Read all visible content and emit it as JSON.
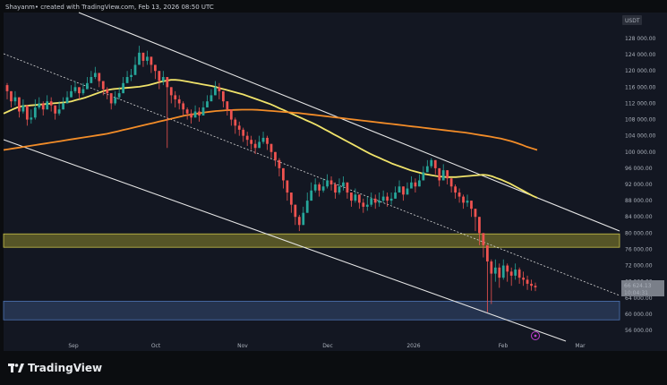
{
  "header": {
    "caption": "Shayanm• created with TradingView.com, Feb 13, 2026 08:50 UTC",
    "currency": "USDT"
  },
  "footer": {
    "brand": "TradingView"
  },
  "price_tags": {
    "current": "66 624.13",
    "countdown": "10:04:31"
  },
  "colors": {
    "background": "#131722",
    "bull": "#26a69a",
    "bear": "#ef5350",
    "ma_fast": "#f0e36a",
    "ma_slow": "#f28c28",
    "channel": "#e6e6e6",
    "resistance_zone": "#6e6b2a",
    "support_zone": "#2c3e5e"
  },
  "chart_data": {
    "type": "candlestick",
    "title": "",
    "xlabel": "",
    "ylabel": "",
    "ylim": [
      52000,
      130000
    ],
    "y_ticks": [
      "128 000.00",
      "124 000.00",
      "120 000.00",
      "116 000.00",
      "112 000.00",
      "108 000.00",
      "104 000.00",
      "100 000.00",
      "96 000.00",
      "92 000.00",
      "88 000.00",
      "84 000.00",
      "80 000.00",
      "76 000.00",
      "72 000.00",
      "68 000.00",
      "64 000.00",
      "60 000.00",
      "56 000.00"
    ],
    "x_ticks": [
      "Sep",
      "Oct",
      "Nov",
      "Dec",
      "2026",
      "Feb",
      "Mar"
    ],
    "series": [
      {
        "name": "",
        "kind": "candles",
        "color_up": "#26a69a",
        "color_down": "#ef5350",
        "close": [
          115000,
          112500,
          113500,
          110000,
          111500,
          108000,
          108500,
          111000,
          112000,
          110500,
          112500,
          111500,
          109500,
          110500,
          112000,
          113500,
          115000,
          116000,
          114500,
          115500,
          117000,
          118500,
          119500,
          117500,
          115500,
          114500,
          112000,
          113500,
          114500,
          117000,
          118500,
          119000,
          121500,
          124500,
          122500,
          123500,
          121500,
          120000,
          117500,
          118500,
          116000,
          114000,
          113000,
          112000,
          110500,
          109500,
          108500,
          110000,
          109000,
          111000,
          112500,
          114000,
          116000,
          115000,
          112500,
          110500,
          108000,
          106500,
          105500,
          104000,
          103000,
          102000,
          101000,
          102500,
          103500,
          102000,
          100000,
          98000,
          96000,
          93000,
          90000,
          87000,
          84000,
          82000,
          85000,
          88000,
          90500,
          92000,
          90500,
          91500,
          93000,
          92000,
          90000,
          91500,
          92500,
          90000,
          88000,
          89500,
          87500,
          86500,
          87000,
          88500,
          87500,
          88000,
          89000,
          88000,
          88500,
          90000,
          91500,
          89500,
          91000,
          92500,
          91500,
          93000,
          95000,
          96500,
          98000,
          96000,
          93000,
          95500,
          93500,
          91500,
          90000,
          89000,
          87500,
          88000,
          86000,
          84000,
          80000,
          77000,
          73000,
          70000,
          71500,
          69000,
          72000,
          70500,
          69500,
          71000,
          69000,
          68500,
          67500,
          67000,
          66624
        ],
        "high": [
          117000,
          115000,
          115000,
          113500,
          113000,
          111500,
          110500,
          113000,
          113500,
          112500,
          114000,
          113500,
          111500,
          112500,
          113500,
          115000,
          116500,
          117500,
          116000,
          117000,
          118500,
          120000,
          121000,
          119500,
          117500,
          116000,
          114000,
          115000,
          116000,
          118500,
          120000,
          120500,
          123500,
          126200,
          124500,
          125000,
          123500,
          121500,
          119500,
          120000,
          118000,
          116000,
          115000,
          114000,
          112500,
          111000,
          110500,
          111500,
          111000,
          112500,
          114000,
          115500,
          117500,
          117000,
          115000,
          112500,
          110000,
          108500,
          107500,
          106000,
          105000,
          104000,
          103000,
          104000,
          105000,
          104000,
          102000,
          100000,
          98500,
          95000,
          92500,
          89000,
          86500,
          84500,
          86500,
          90000,
          92500,
          93500,
          92500,
          93500,
          94500,
          94000,
          92500,
          93500,
          94000,
          92500,
          90000,
          91000,
          89500,
          88500,
          89000,
          90000,
          89500,
          90000,
          90500,
          90000,
          90000,
          91500,
          93000,
          91500,
          92500,
          94000,
          93500,
          94500,
          96500,
          98000,
          98500,
          98000,
          96000,
          97000,
          95500,
          93500,
          92000,
          91000,
          89500,
          89500,
          88000,
          86000,
          84000,
          80000,
          77000,
          73500,
          73500,
          72500,
          73500,
          72500,
          71500,
          72500,
          71500,
          70500,
          69500,
          68500,
          67800
        ],
        "low": [
          113000,
          111000,
          111500,
          108500,
          109500,
          106500,
          107000,
          108000,
          110500,
          109000,
          110500,
          110000,
          108000,
          109000,
          110500,
          112000,
          113500,
          114500,
          113000,
          114000,
          115500,
          117000,
          118000,
          116000,
          114000,
          113000,
          110500,
          111500,
          113000,
          115500,
          117000,
          117500,
          119500,
          122500,
          121000,
          121500,
          119500,
          118000,
          115500,
          116500,
          101000,
          112000,
          111000,
          110500,
          109000,
          108000,
          107000,
          108500,
          107500,
          109000,
          111000,
          112500,
          114000,
          113000,
          111000,
          109000,
          106500,
          104500,
          104000,
          102500,
          101500,
          100500,
          99500,
          101000,
          102000,
          100500,
          98500,
          96500,
          94000,
          91000,
          88000,
          85000,
          82000,
          80500,
          83000,
          86000,
          88500,
          90000,
          89000,
          90000,
          91000,
          90500,
          88500,
          89500,
          90500,
          88500,
          86500,
          87500,
          86000,
          85000,
          85500,
          86500,
          86000,
          86500,
          87500,
          86500,
          87000,
          88500,
          90000,
          88000,
          89500,
          91000,
          90000,
          91500,
          93500,
          95000,
          96000,
          94500,
          91500,
          93500,
          92000,
          90000,
          88500,
          87500,
          86000,
          86500,
          84000,
          80500,
          77000,
          74000,
          60500,
          62500,
          68000,
          66500,
          68500,
          68000,
          67000,
          68500,
          67500,
          67000,
          66000,
          65800,
          65700
        ]
      },
      {
        "name": "",
        "kind": "line",
        "color": "#f0e36a",
        "values": [
          109500,
          110000,
          110500,
          111000,
          111300,
          111400,
          111500,
          111600,
          111700,
          111800,
          111900,
          112000,
          112100,
          112200,
          112300,
          112500,
          112800,
          113100,
          113400,
          113800,
          114200,
          114600,
          115000,
          115300,
          115500,
          115600,
          115700,
          115800,
          115900,
          116000,
          116100,
          116300,
          116500,
          116800,
          117100,
          117400,
          117600,
          117800,
          117800,
          117700,
          117500,
          117300,
          117100,
          116900,
          116700,
          116500,
          116300,
          116000,
          115700,
          115400,
          115100,
          114800,
          114500,
          114200,
          113800,
          113400,
          113000,
          112600,
          112200,
          111800,
          111300,
          110800,
          110300,
          109800,
          109300,
          108800,
          108300,
          107800,
          107300,
          106800,
          106200,
          105600,
          105000,
          104400,
          103800,
          103200,
          102600,
          102000,
          101400,
          100800,
          100200,
          99600,
          99100,
          98600,
          98100,
          97600,
          97100,
          96700,
          96300,
          95900,
          95500,
          95200,
          94900,
          94600,
          94400,
          94200,
          94000,
          93900,
          93800,
          93800,
          93800,
          93900,
          94000,
          94100,
          94200,
          94300,
          94400,
          94300,
          94000,
          93600,
          93200,
          92700,
          92200,
          91600,
          91000,
          90400,
          89800,
          89200,
          88700
        ]
      },
      {
        "name": "",
        "kind": "line",
        "color": "#f28c28",
        "values": [
          100500,
          100700,
          100900,
          101100,
          101300,
          101500,
          101700,
          101900,
          102100,
          102300,
          102500,
          102700,
          102900,
          103100,
          103300,
          103500,
          103700,
          103900,
          104100,
          104300,
          104500,
          104800,
          105100,
          105400,
          105700,
          106000,
          106300,
          106600,
          106900,
          107200,
          107500,
          107800,
          108100,
          108400,
          108700,
          109000,
          109200,
          109400,
          109600,
          109800,
          109950,
          110100,
          110200,
          110300,
          110350,
          110400,
          110450,
          110450,
          110450,
          110400,
          110300,
          110200,
          110100,
          110000,
          109900,
          109800,
          109700,
          109600,
          109450,
          109300,
          109150,
          109000,
          108850,
          108700,
          108550,
          108400,
          108250,
          108100,
          107950,
          107800,
          107650,
          107500,
          107350,
          107200,
          107050,
          106900,
          106750,
          106600,
          106450,
          106300,
          106150,
          106000,
          105850,
          105700,
          105550,
          105400,
          105250,
          105100,
          104950,
          104800,
          104600,
          104400,
          104200,
          104000,
          103800,
          103550,
          103300,
          103000,
          102650,
          102250,
          101800,
          101300,
          100900,
          100500
        ]
      }
    ],
    "zones": [
      {
        "name": "",
        "from": 76500,
        "to": 79800,
        "color": "#6e6b2a"
      },
      {
        "name": "",
        "from": 58600,
        "to": 63200,
        "color": "#2c3e5e"
      }
    ],
    "legend": "none",
    "grid": false
  }
}
